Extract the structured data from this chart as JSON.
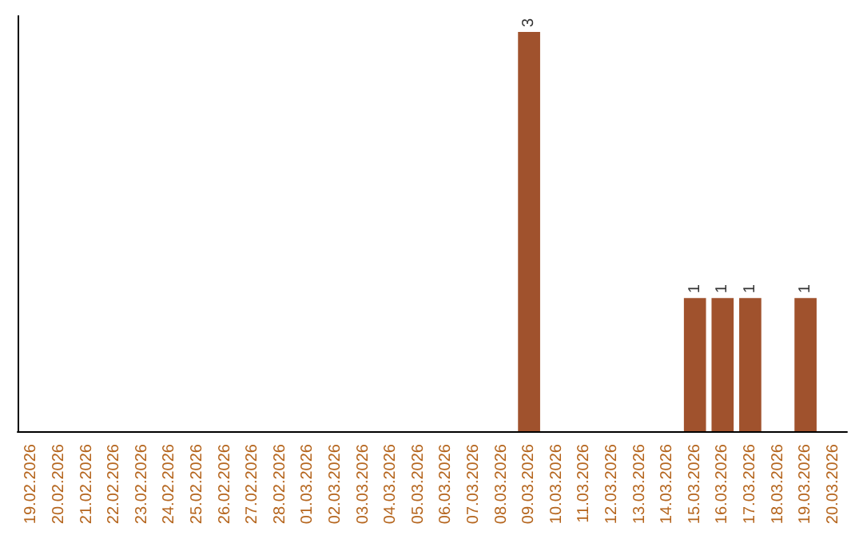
{
  "chart_data": {
    "type": "bar",
    "categories": [
      "19.02.2026",
      "20.02.2026",
      "21.02.2026",
      "22.02.2026",
      "23.02.2026",
      "24.02.2026",
      "25.02.2026",
      "26.02.2026",
      "27.02.2026",
      "28.02.2026",
      "01.03.2026",
      "02.03.2026",
      "03.03.2026",
      "04.03.2026",
      "05.03.2026",
      "06.03.2026",
      "07.03.2026",
      "08.03.2026",
      "09.03.2026",
      "10.03.2026",
      "11.03.2026",
      "12.03.2026",
      "13.03.2026",
      "14.03.2026",
      "15.03.2026",
      "16.03.2026",
      "17.03.2026",
      "18.03.2026",
      "19.03.2026",
      "20.03.2026"
    ],
    "values": [
      null,
      null,
      null,
      null,
      null,
      null,
      null,
      null,
      null,
      null,
      null,
      null,
      null,
      null,
      null,
      null,
      null,
      null,
      3,
      null,
      null,
      null,
      null,
      null,
      1,
      1,
      1,
      null,
      1,
      null
    ],
    "value_labels": [
      null,
      null,
      null,
      null,
      null,
      null,
      null,
      null,
      null,
      null,
      null,
      null,
      null,
      null,
      null,
      null,
      null,
      null,
      "3",
      null,
      null,
      null,
      null,
      null,
      "1",
      "1",
      "1",
      null,
      "1",
      null
    ],
    "color": "#a0522d",
    "grid": false
  }
}
